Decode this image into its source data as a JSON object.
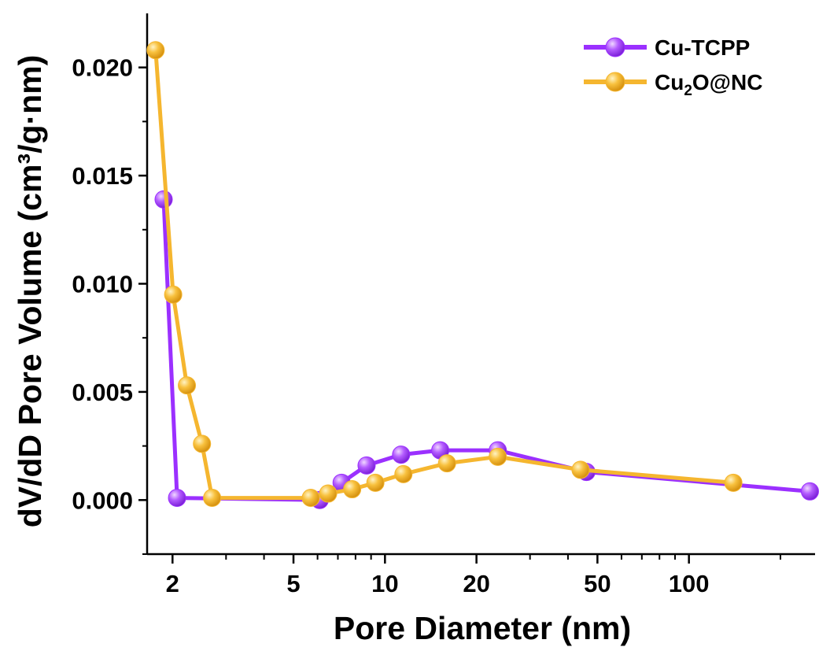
{
  "chart_data": {
    "type": "line",
    "title": "",
    "xlabel": "Pore Diameter (nm)",
    "ylabel": "dV/dD Pore Volume (cm³/g·nm)",
    "xscale": "log",
    "xlim": [
      1.65,
      260
    ],
    "ylim": [
      -0.0025,
      0.0225
    ],
    "xticks": [
      2,
      5,
      10,
      20,
      50,
      100
    ],
    "xtick_labels": [
      "2",
      "5",
      "10",
      "20",
      "50",
      "100"
    ],
    "yticks": [
      0,
      0.005,
      0.01,
      0.015,
      0.02
    ],
    "ytick_labels": [
      "0.000",
      "0.005",
      "0.010",
      "0.015",
      "0.020"
    ],
    "grid": false,
    "legend_position": "top-right",
    "series": [
      {
        "name": "Cu-TCPP",
        "color": "#9b30ff",
        "x": [
          1.87,
          2.07,
          6.1,
          7.2,
          8.7,
          11.3,
          15.2,
          23.5,
          46,
          250
        ],
        "y": [
          0.0139,
          0.0001,
          0.0,
          0.0008,
          0.0016,
          0.0021,
          0.0023,
          0.0023,
          0.0013,
          0.0004
        ]
      },
      {
        "name": "Cu2O@NC",
        "name_parts": [
          "Cu",
          "2",
          "O@NC"
        ],
        "color": "#f5b62f",
        "x": [
          1.76,
          2.01,
          2.23,
          2.5,
          2.7,
          5.7,
          6.5,
          7.8,
          9.3,
          11.5,
          16,
          23.5,
          44,
          140
        ],
        "y": [
          0.0208,
          0.0095,
          0.0053,
          0.0026,
          0.0001,
          0.0001,
          0.0003,
          0.0005,
          0.0008,
          0.0012,
          0.0017,
          0.002,
          0.0014,
          0.0008
        ]
      }
    ]
  }
}
